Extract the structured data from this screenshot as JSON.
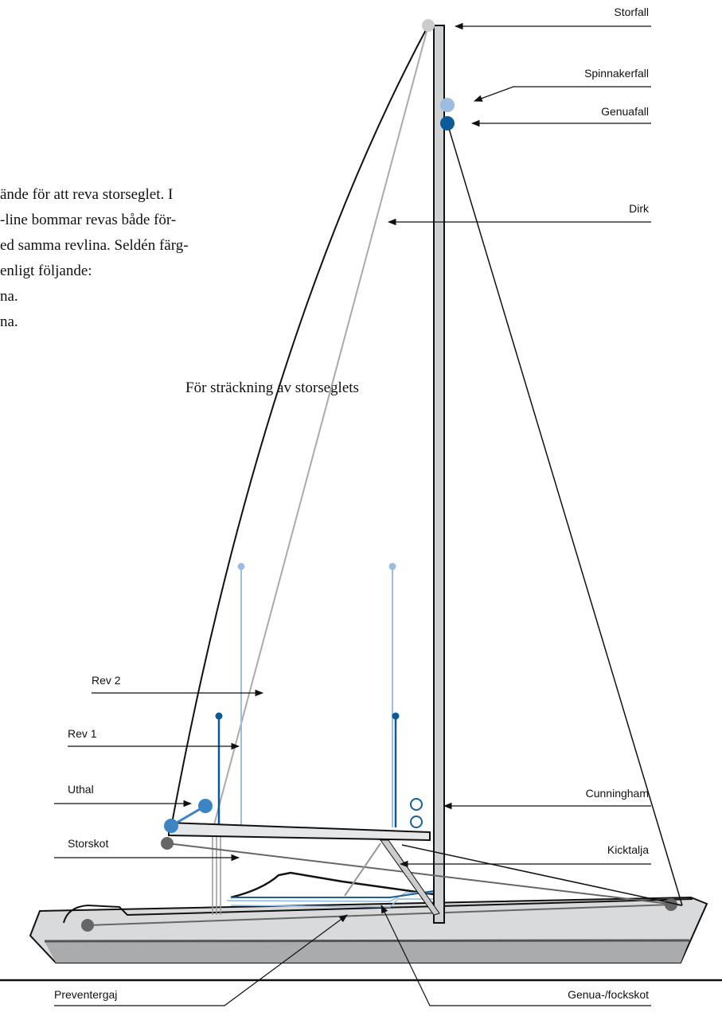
{
  "paragraph": {
    "lines": [
      "ände för att reva storseglet. I",
      "-line bommar revas både för-",
      "ed samma revlina. Seldén färg-",
      "enligt följande:",
      "na.",
      "na."
    ],
    "continuation": "För sträckning av storseglets"
  },
  "labels": {
    "storfall": "Storfall",
    "spinnakerfall": "Spinnakerfall",
    "genuafall": "Genuafall",
    "dirk": "Dirk",
    "rev2": "Rev 2",
    "rev1": "Rev 1",
    "uthal": "Uthal",
    "storskot": "Storskot",
    "cunningham": "Cunningham",
    "kicktalja": "Kicktalja",
    "preventergaj": "Preventergaj",
    "fockskot": "Genua-/fockskot"
  }
}
